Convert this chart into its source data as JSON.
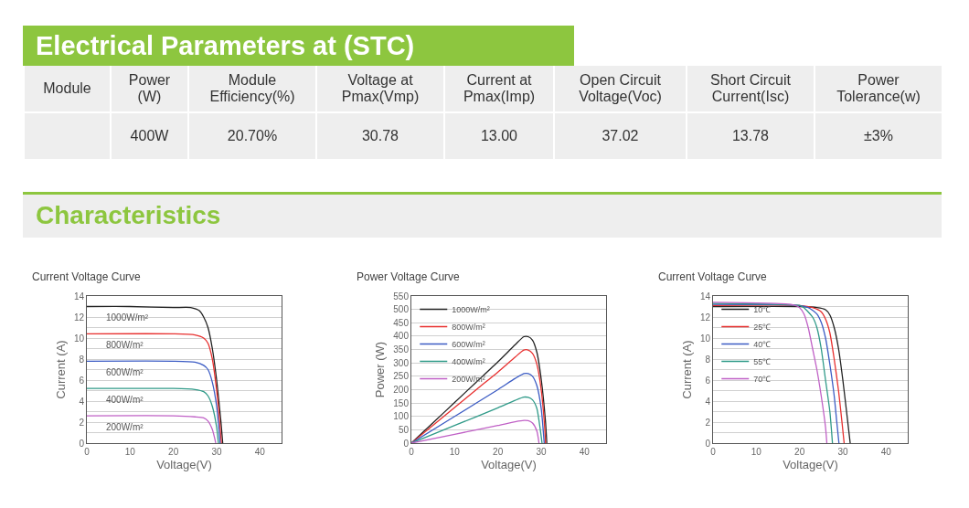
{
  "chart_data": [
    {
      "type": "other",
      "title": "Electrical Parameters at (STC)",
      "categories": [
        "Module",
        "Power (W)",
        "Module Efficiency(%)",
        "Voltage at Pmax(Vmp)",
        "Current at Pmax(Imp)",
        "Open Circuit Voltage(Voc)",
        "Short Circuit Current(Isc)",
        "Power Tolerance(w)"
      ],
      "value_labels": [
        null,
        "400W",
        "20.70%",
        "30.78",
        "13.00",
        "37.02",
        "13.78",
        "±3%"
      ]
    },
    {
      "type": "other",
      "title": "Characteristics"
    },
    {
      "type": "line",
      "title": "Current Voltage Curve",
      "xlabel": "Voltage(V)",
      "ylabel": "Current (A)",
      "xlim": [
        0,
        45
      ],
      "xticks": [
        0,
        10,
        20,
        30,
        40
      ],
      "ylim": [
        0,
        14
      ],
      "yticks": [
        0,
        {
          "value": 1,
          "label": null
        },
        2,
        {
          "value": 3,
          "label": null
        },
        4,
        {
          "value": 5,
          "label": null
        },
        6,
        {
          "value": 7,
          "label": null
        },
        8,
        {
          "value": 9,
          "label": null
        },
        10,
        {
          "value": 11,
          "label": null
        },
        12,
        {
          "value": 13,
          "label": null
        },
        14
      ],
      "grid": "y",
      "legend": false,
      "series": [
        {
          "name": "1000W/m²",
          "color": "#222222",
          "x": [
            0,
            10,
            20,
            24,
            26,
            27,
            28,
            29,
            30,
            31,
            31.4
          ],
          "values": [
            13,
            13,
            12.9,
            12.9,
            12.6,
            12,
            11,
            9,
            6,
            2,
            0
          ]
        },
        {
          "name": "800W/m²",
          "color": "#e8302f",
          "x": [
            0,
            20,
            25,
            27,
            28,
            29,
            30,
            30.7,
            31.1
          ],
          "values": [
            10.4,
            10.4,
            10.3,
            10,
            9.5,
            8,
            5,
            2,
            0
          ]
        },
        {
          "name": "600W/m²",
          "color": "#3c5cc4",
          "x": [
            0,
            20,
            25,
            27,
            28,
            29,
            30,
            30.8
          ],
          "values": [
            7.8,
            7.8,
            7.7,
            7.4,
            7,
            5.8,
            3.5,
            0
          ]
        },
        {
          "name": "400W/m²",
          "color": "#2f9a88",
          "x": [
            0,
            20,
            25,
            27,
            28,
            29,
            30,
            30.4
          ],
          "values": [
            5.2,
            5.2,
            5.1,
            4.9,
            4.5,
            3.5,
            1.5,
            0
          ]
        },
        {
          "name": "200W/m²",
          "color": "#c061c6",
          "x": [
            0,
            20,
            25,
            27,
            28,
            29,
            29.8
          ],
          "values": [
            2.6,
            2.6,
            2.5,
            2.4,
            2.1,
            1.3,
            0
          ]
        }
      ]
    },
    {
      "type": "line",
      "title": "Power Voltage Curve",
      "xlabel": "Voltage(V)",
      "ylabel": "Power (W)",
      "xlim": [
        0,
        45
      ],
      "xticks": [
        0,
        10,
        20,
        30,
        40
      ],
      "ylim": [
        0,
        550
      ],
      "yticks": [
        0,
        50,
        100,
        150,
        200,
        250,
        300,
        350,
        400,
        450,
        500,
        550
      ],
      "grid": "y",
      "legend": "top left",
      "series": [
        {
          "name": "1000W/m²",
          "color": "#222222",
          "x": [
            0,
            5,
            10,
            15,
            20,
            24,
            26,
            27,
            28,
            29,
            30,
            31,
            31.3
          ],
          "values": [
            0,
            76,
            152,
            228,
            304,
            368,
            398,
            398,
            385,
            340,
            240,
            80,
            0
          ]
        },
        {
          "name": "800W/m²",
          "color": "#e8302f",
          "x": [
            0,
            5,
            10,
            15,
            20,
            24,
            26,
            27,
            28,
            29,
            30,
            30.8,
            31
          ],
          "values": [
            0,
            67,
            133,
            200,
            266,
            322,
            348,
            348,
            335,
            295,
            200,
            60,
            0
          ]
        },
        {
          "name": "600W/m²",
          "color": "#3c5cc4",
          "x": [
            0,
            10,
            20,
            24,
            26,
            27,
            28,
            29,
            30,
            30.7
          ],
          "values": [
            0,
            100,
            200,
            242,
            260,
            260,
            250,
            215,
            130,
            0
          ]
        },
        {
          "name": "400W/m²",
          "color": "#2f9a88",
          "x": [
            0,
            10,
            20,
            24,
            26,
            27,
            28,
            29,
            29.8,
            30.2
          ],
          "values": [
            0,
            66,
            132,
            160,
            172,
            171,
            162,
            130,
            50,
            0
          ]
        },
        {
          "name": "200W/m²",
          "color": "#c061c6",
          "x": [
            0,
            10,
            20,
            24,
            26,
            27,
            28,
            29,
            29.5
          ],
          "values": [
            0,
            33,
            66,
            80,
            85,
            84,
            75,
            45,
            0
          ]
        }
      ]
    },
    {
      "type": "line",
      "title": "Current Voltage Curve",
      "xlabel": "Voltage(V)",
      "ylabel": "Current (A)",
      "xlim": [
        0,
        45
      ],
      "xticks": [
        0,
        10,
        20,
        30,
        40
      ],
      "ylim": [
        0,
        14
      ],
      "yticks": [
        0,
        {
          "value": 1,
          "label": null
        },
        2,
        {
          "value": 3,
          "label": null
        },
        4,
        {
          "value": 5,
          "label": null
        },
        6,
        {
          "value": 7,
          "label": null
        },
        8,
        {
          "value": 9,
          "label": null
        },
        10,
        {
          "value": 11,
          "label": null
        },
        12,
        {
          "value": 13,
          "label": null
        },
        14
      ],
      "grid": "y",
      "legend": "top left",
      "series": [
        {
          "name": "10℃",
          "color": "#222222",
          "x": [
            0,
            20,
            24,
            26,
            27,
            28,
            29,
            30,
            31,
            31.7
          ],
          "values": [
            13,
            13,
            12.9,
            12.7,
            12.2,
            11,
            9,
            6,
            2.5,
            0
          ]
        },
        {
          "name": "25℃",
          "color": "#e8302f",
          "x": [
            0,
            20,
            23,
            25,
            26,
            27,
            28,
            29,
            29.8,
            30.3
          ],
          "values": [
            13.1,
            13.1,
            12.9,
            12.5,
            11.8,
            10.5,
            8,
            5,
            2,
            0
          ]
        },
        {
          "name": "40℃",
          "color": "#3c5cc4",
          "x": [
            0,
            20,
            22,
            24,
            25,
            26,
            27,
            28,
            28.6,
            29.1
          ],
          "values": [
            13.2,
            13.1,
            12.9,
            12.3,
            11.5,
            10,
            7.5,
            4.5,
            2,
            0
          ]
        },
        {
          "name": "55℃",
          "color": "#2f9a88",
          "x": [
            0,
            20,
            21,
            23,
            24,
            25,
            26,
            27,
            27.6
          ],
          "values": [
            13.3,
            13.1,
            12.9,
            12,
            11,
            9,
            6,
            3,
            0
          ]
        },
        {
          "name": "70℃",
          "color": "#c061c6",
          "x": [
            0,
            18,
            20,
            21,
            22,
            23,
            24,
            25,
            26,
            26.3
          ],
          "values": [
            13.4,
            13.2,
            12.9,
            12.3,
            11,
            9,
            7,
            4.5,
            1.5,
            0
          ]
        }
      ]
    }
  ]
}
